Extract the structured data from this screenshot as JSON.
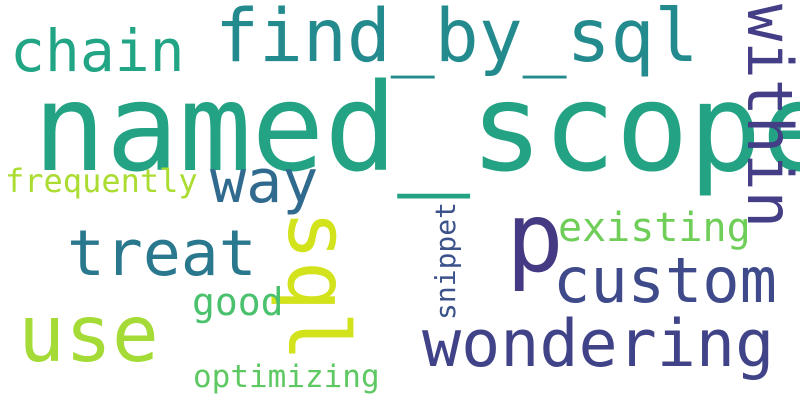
{
  "words": [
    {
      "key": "named_scope",
      "text": "named_scope",
      "color": "#23a383"
    },
    {
      "key": "find_by_sql",
      "text": "find_by_sql",
      "color": "#238a8d"
    },
    {
      "key": "chain",
      "text": "chain",
      "color": "#21a585"
    },
    {
      "key": "within",
      "text": "within",
      "color": "#433e85"
    },
    {
      "key": "way",
      "text": "way",
      "color": "#306a8e"
    },
    {
      "key": "frequently",
      "text": "frequently",
      "color": "#aadc32"
    },
    {
      "key": "sql",
      "text": "sql",
      "color": "#d2e21b"
    },
    {
      "key": "treat",
      "text": "treat",
      "color": "#2a788e"
    },
    {
      "key": "p",
      "text": "p",
      "color": "#443a83"
    },
    {
      "key": "existing",
      "text": "existing",
      "color": "#6ece58"
    },
    {
      "key": "custom",
      "text": "custom",
      "color": "#3e4a89"
    },
    {
      "key": "snippet",
      "text": "snippet",
      "color": "#3b528b"
    },
    {
      "key": "use",
      "text": "use",
      "color": "#a5db36"
    },
    {
      "key": "good",
      "text": "good",
      "color": "#4ac16d"
    },
    {
      "key": "wondering",
      "text": "wondering",
      "color": "#404387"
    },
    {
      "key": "optimizing",
      "text": "optimizing",
      "color": "#5ec962"
    }
  ]
}
